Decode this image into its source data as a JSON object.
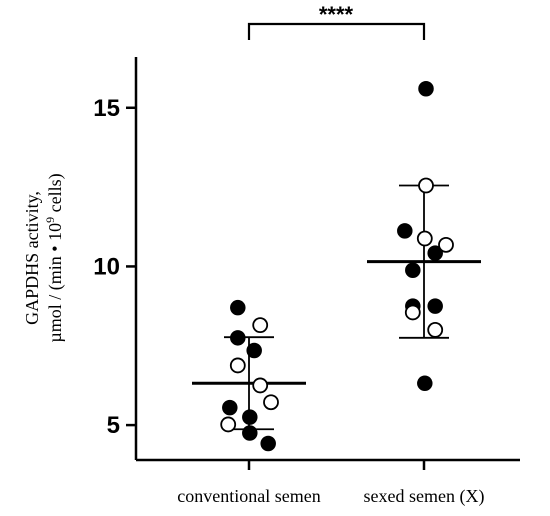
{
  "chart_data": {
    "type": "scatter",
    "title": "",
    "ylabel_line1": "GAPDHS activity,",
    "ylabel_line2_pre": "µmol / (min • 10",
    "ylabel_line2_sup": "9",
    "ylabel_line2_post": " cells)",
    "xlabel": "",
    "ylim": [
      3.9,
      16.6
    ],
    "yticks": [
      5,
      10,
      15
    ],
    "categories": [
      "conventional semen",
      "sexed semen (X)"
    ],
    "groups": [
      {
        "category": "conventional semen",
        "mean": 6.32,
        "sd_low": 4.87,
        "sd_high": 7.77,
        "filled": [
          {
            "offset": -0.28,
            "y": 8.7
          },
          {
            "offset": -0.28,
            "y": 7.75
          },
          {
            "offset": 0.13,
            "y": 7.35
          },
          {
            "offset": -0.48,
            "y": 5.55
          },
          {
            "offset": 0.02,
            "y": 5.25
          },
          {
            "offset": 0.02,
            "y": 4.75
          },
          {
            "offset": 0.48,
            "y": 4.42
          }
        ],
        "open": [
          {
            "offset": 0.28,
            "y": 8.15
          },
          {
            "offset": -0.28,
            "y": 6.88
          },
          {
            "offset": 0.28,
            "y": 6.25
          },
          {
            "offset": 0.55,
            "y": 5.72
          },
          {
            "offset": -0.52,
            "y": 5.02
          }
        ]
      },
      {
        "category": "sexed semen (X)",
        "mean": 10.15,
        "sd_low": 7.75,
        "sd_high": 12.55,
        "filled": [
          {
            "offset": 0.05,
            "y": 15.6
          },
          {
            "offset": -0.48,
            "y": 11.12
          },
          {
            "offset": 0.28,
            "y": 10.42
          },
          {
            "offset": -0.28,
            "y": 9.88
          },
          {
            "offset": -0.28,
            "y": 8.75
          },
          {
            "offset": 0.28,
            "y": 8.75
          },
          {
            "offset": 0.02,
            "y": 6.32
          }
        ],
        "open": [
          {
            "offset": 0.05,
            "y": 12.55
          },
          {
            "offset": 0.02,
            "y": 10.88
          },
          {
            "offset": 0.55,
            "y": 10.68
          },
          {
            "offset": -0.28,
            "y": 8.55
          },
          {
            "offset": 0.28,
            "y": 8.0
          }
        ]
      }
    ],
    "significance": "****"
  }
}
